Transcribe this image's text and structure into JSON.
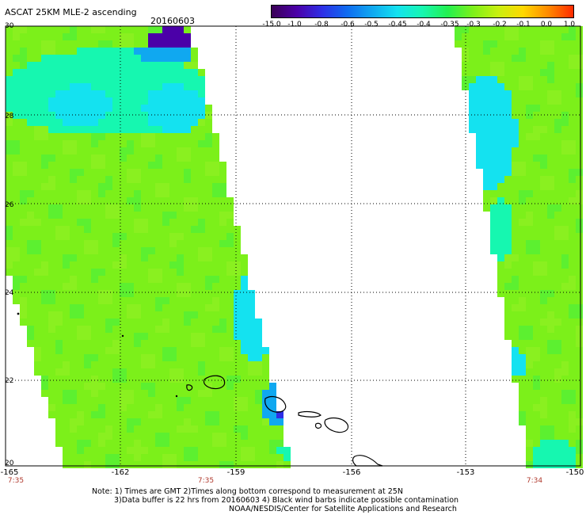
{
  "header": {
    "title": "ASCAT 25KM MLE-2 ascending",
    "date": "20160603"
  },
  "colorbar": {
    "labels": [
      "-15.0",
      "-1.0",
      "-0.8",
      "-0.6",
      "-0.5",
      "-0.45",
      "-0.4",
      "-0.35",
      "-0.3",
      "-0.2",
      "-0.1",
      "0.0",
      "1.0"
    ],
    "colors": [
      "#3a0055",
      "#4b00a8",
      "#2e2ee6",
      "#0f6bf0",
      "#10a8f0",
      "#14e2f0",
      "#16f7b0",
      "#22f050",
      "#7cf01a",
      "#c8f010",
      "#ffd800",
      "#ff8a00",
      "#ff2a00"
    ]
  },
  "map": {
    "lat_labels": [
      "30",
      "28",
      "26",
      "24",
      "22",
      "20"
    ],
    "lon_labels": [
      "-165",
      "-162",
      "-159",
      "-156",
      "-153",
      "-150"
    ],
    "swath_times": [
      "7:35",
      "7:35",
      "7:34"
    ],
    "background": "#ffffff",
    "base_color": "#7cf01a",
    "gridline_style": "dotted"
  },
  "footer": {
    "note_line1": "Note: 1) Times are GMT 2)Times along bottom correspond to measurement at 25N",
    "note_line2": "3)Data buffer is 22 hrs from 20160603 4) Black wind barbs indicate possible contamination",
    "note_line3": "NOAA/NESDIS/Center for Satellite Applications and Research"
  }
}
